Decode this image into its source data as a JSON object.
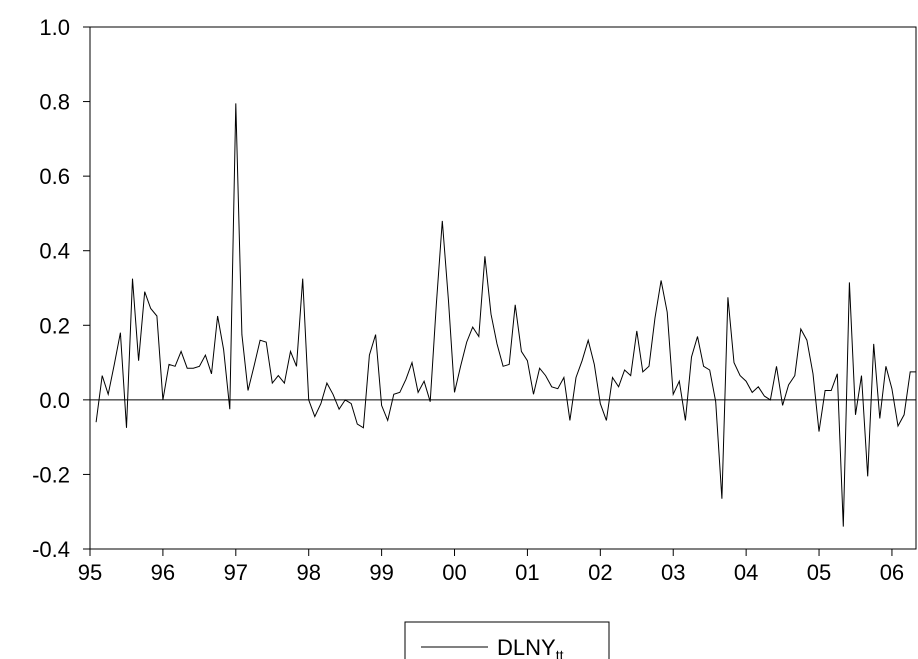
{
  "chart_data": {
    "type": "line",
    "title": "",
    "xlabel": "",
    "ylabel": "",
    "ylim": [
      -0.4,
      1.0
    ],
    "xlim": [
      1995.0,
      2006.33
    ],
    "grid": false,
    "legend_position": "bottom-center",
    "y_ticks": [
      "-0.4",
      "-0.2",
      "0.0",
      "0.2",
      "0.4",
      "0.6",
      "0.8",
      "1.0"
    ],
    "y_tick_values": [
      -0.4,
      -0.2,
      0.0,
      0.2,
      0.4,
      0.6,
      0.8,
      1.0
    ],
    "x_ticks": [
      "95",
      "96",
      "97",
      "98",
      "99",
      "00",
      "01",
      "02",
      "03",
      "04",
      "05",
      "06"
    ],
    "x_tick_values": [
      1995,
      1996,
      1997,
      1998,
      1999,
      2000,
      2001,
      2002,
      2003,
      2004,
      2005,
      2006
    ],
    "reference_line": 0.0,
    "series": [
      {
        "name": "DLNY",
        "name_subscript": "tt",
        "color": "#000000",
        "x": [
          1995.083,
          1995.167,
          1995.25,
          1995.333,
          1995.417,
          1995.5,
          1995.583,
          1995.667,
          1995.75,
          1995.833,
          1995.917,
          1996.0,
          1996.083,
          1996.167,
          1996.25,
          1996.333,
          1996.417,
          1996.5,
          1996.583,
          1996.667,
          1996.75,
          1996.833,
          1996.917,
          1997.0,
          1997.083,
          1997.167,
          1997.25,
          1997.333,
          1997.417,
          1997.5,
          1997.583,
          1997.667,
          1997.75,
          1997.833,
          1997.917,
          1998.0,
          1998.083,
          1998.167,
          1998.25,
          1998.333,
          1998.417,
          1998.5,
          1998.583,
          1998.667,
          1998.75,
          1998.833,
          1998.917,
          1999.0,
          1999.083,
          1999.167,
          1999.25,
          1999.333,
          1999.417,
          1999.5,
          1999.583,
          1999.667,
          1999.75,
          1999.833,
          1999.917,
          2000.0,
          2000.083,
          2000.167,
          2000.25,
          2000.333,
          2000.417,
          2000.5,
          2000.583,
          2000.667,
          2000.75,
          2000.833,
          2000.917,
          2001.0,
          2001.083,
          2001.167,
          2001.25,
          2001.333,
          2001.417,
          2001.5,
          2001.583,
          2001.667,
          2001.75,
          2001.833,
          2001.917,
          2002.0,
          2002.083,
          2002.167,
          2002.25,
          2002.333,
          2002.417,
          2002.5,
          2002.583,
          2002.667,
          2002.75,
          2002.833,
          2002.917,
          2003.0,
          2003.083,
          2003.167,
          2003.25,
          2003.333,
          2003.417,
          2003.5,
          2003.583,
          2003.667,
          2003.75,
          2003.833,
          2003.917,
          2004.0,
          2004.083,
          2004.167,
          2004.25,
          2004.333,
          2004.417,
          2004.5,
          2004.583,
          2004.667,
          2004.75,
          2004.833,
          2004.917,
          2005.0,
          2005.083,
          2005.167,
          2005.25,
          2005.333,
          2005.417,
          2005.5,
          2005.583,
          2005.667,
          2005.75,
          2005.833,
          2005.917,
          2006.0,
          2006.083,
          2006.167,
          2006.25,
          2006.333
        ],
        "values": [
          -0.06,
          0.065,
          0.015,
          0.095,
          0.18,
          -0.075,
          0.325,
          0.105,
          0.29,
          0.245,
          0.225,
          0.0,
          0.095,
          0.09,
          0.13,
          0.085,
          0.085,
          0.09,
          0.12,
          0.07,
          0.225,
          0.135,
          -0.025,
          0.795,
          0.175,
          0.025,
          0.09,
          0.16,
          0.155,
          0.045,
          0.065,
          0.045,
          0.13,
          0.09,
          0.325,
          0.0,
          -0.045,
          -0.01,
          0.045,
          0.015,
          -0.025,
          0.0,
          -0.01,
          -0.065,
          -0.075,
          0.12,
          0.175,
          -0.015,
          -0.055,
          0.015,
          0.02,
          0.055,
          0.1,
          0.02,
          0.05,
          -0.005,
          0.255,
          0.48,
          0.265,
          0.02,
          0.09,
          0.155,
          0.195,
          0.17,
          0.385,
          0.23,
          0.15,
          0.09,
          0.095,
          0.255,
          0.13,
          0.105,
          0.015,
          0.085,
          0.065,
          0.035,
          0.03,
          0.06,
          -0.055,
          0.06,
          0.105,
          0.16,
          0.095,
          -0.01,
          -0.055,
          0.06,
          0.035,
          0.08,
          0.065,
          0.185,
          0.075,
          0.09,
          0.22,
          0.32,
          0.235,
          0.015,
          0.05,
          -0.055,
          0.115,
          0.17,
          0.09,
          0.08,
          -0.005,
          -0.265,
          0.275,
          0.1,
          0.065,
          0.05,
          0.02,
          0.035,
          0.01,
          0.0,
          0.09,
          -0.015,
          0.04,
          0.065,
          0.19,
          0.16,
          0.07,
          -0.085,
          0.025,
          0.025,
          0.07,
          -0.34,
          0.315,
          -0.04,
          0.065,
          -0.205,
          0.15,
          -0.05,
          0.09,
          0.03,
          -0.07,
          -0.04,
          0.075,
          0.075
        ]
      }
    ]
  }
}
